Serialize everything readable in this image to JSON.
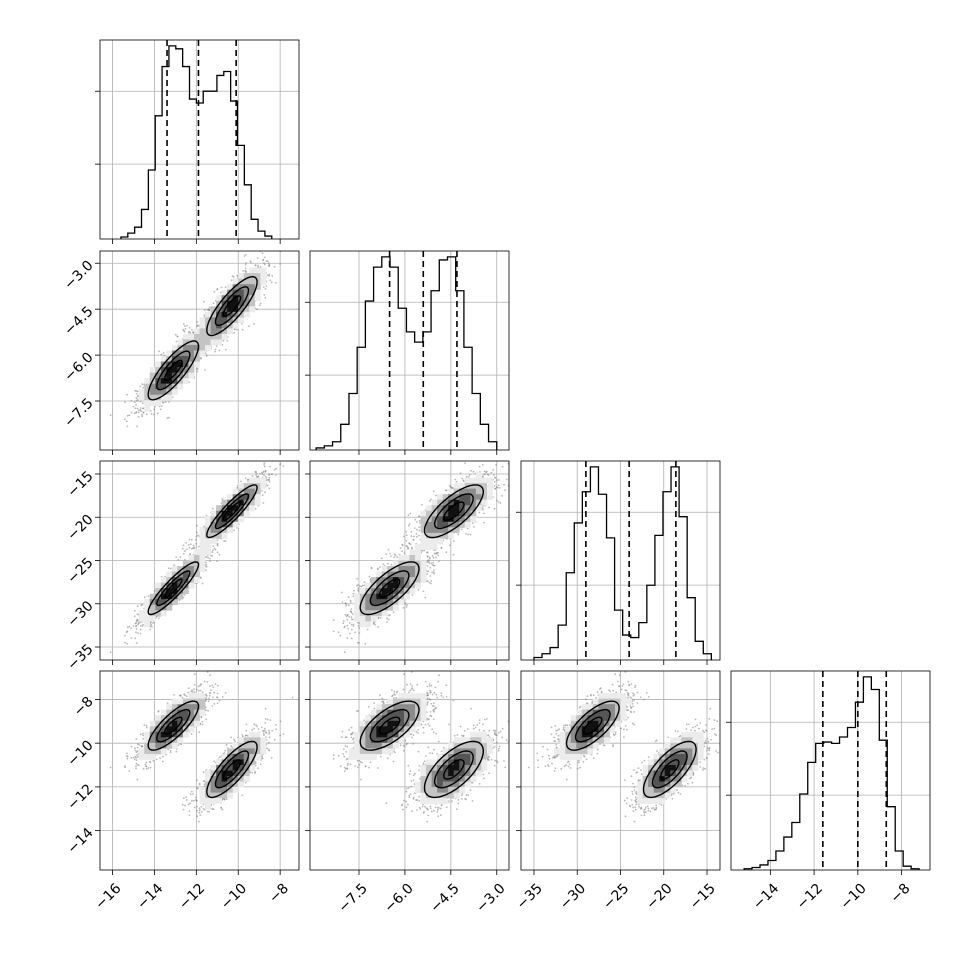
{
  "chart_data": {
    "type": "corner",
    "grid": true,
    "variables": [
      {
        "range": [
          -16.6,
          -7.1
        ],
        "ticks": [
          -16,
          -14,
          -12,
          -10,
          -8
        ],
        "tick_labels": [
          "−16",
          "−14",
          "−12",
          "−10",
          "−8"
        ],
        "quantiles": [
          -13.4,
          -11.9,
          -10.1
        ],
        "hist_edges": [
          -15.6,
          -8.4
        ],
        "hist_counts": [
          0.2,
          0.6,
          1.2,
          3.0,
          7.0,
          12.5,
          17.5,
          19.6,
          19.3,
          17.5,
          14.2,
          13.8,
          15.0,
          15.0,
          16.6,
          17.0,
          14.0,
          9.5,
          5.5,
          2.0,
          0.8,
          0.3
        ]
      },
      {
        "range": [
          -9.1,
          -2.6
        ],
        "ticks": [
          -7.5,
          -6.0,
          -4.5,
          -3.0
        ],
        "tick_labels": [
          "−7.5",
          "−6.0",
          "−4.5",
          "−3.0"
        ],
        "quantiles": [
          -6.5,
          -5.4,
          -4.3
        ],
        "hist_edges": [
          -8.9,
          -3.0
        ],
        "hist_counts": [
          0.2,
          0.4,
          0.8,
          2.5,
          5.5,
          10.0,
          14.5,
          17.8,
          18.8,
          17.8,
          13.8,
          11.5,
          10.5,
          11.5,
          15.5,
          18.5,
          18.8,
          15.5,
          10.0,
          5.5,
          2.5,
          0.8
        ]
      },
      {
        "range": [
          -36.5,
          -13.5
        ],
        "ticks": [
          -35,
          -30,
          -25,
          -20,
          -15
        ],
        "tick_labels": [
          "−35",
          "−30",
          "−25",
          "−20",
          "−15"
        ],
        "quantiles": [
          -29.0,
          -24.0,
          -18.6
        ],
        "hist_edges": [
          -35.0,
          -14.5
        ],
        "hist_counts": [
          0.2,
          0.5,
          1.0,
          2.8,
          7.0,
          11.0,
          13.5,
          15.5,
          13.3,
          9.8,
          4.0,
          2.0,
          1.8,
          3.0,
          6.0,
          10.0,
          13.5,
          15.5,
          11.5,
          5.0,
          1.5,
          0.5
        ]
      },
      {
        "range": [
          -15.8,
          -6.7
        ],
        "ticks": [
          -14,
          -12,
          -10,
          -8
        ],
        "tick_labels": [
          "−14",
          "−12",
          "−10",
          "−8"
        ],
        "quantiles": [
          -11.6,
          -10.0,
          -8.7
        ],
        "hist_edges": [
          -15.2,
          -7.2
        ],
        "hist_counts": [
          0.2,
          0.4,
          0.8,
          1.5,
          3.0,
          5.2,
          7.5,
          12.0,
          17.0,
          20.0,
          20.2,
          20.0,
          21.0,
          22.5,
          26.5,
          30.5,
          28.5,
          20.5,
          10.0,
          3.0,
          0.6,
          0.2
        ]
      }
    ],
    "modes": [
      {
        "mean": [
          -13.1,
          -6.5,
          -28.2,
          -9.2
        ],
        "sd": [
          0.75,
          0.6,
          1.9,
          0.7
        ],
        "corr_to_first": [
          1.0,
          0.82,
          0.9,
          0.8
        ]
      },
      {
        "mean": [
          -10.3,
          -4.4,
          -19.3,
          -11.2
        ],
        "sd": [
          0.75,
          0.6,
          1.9,
          0.8
        ],
        "corr_to_first": [
          1.0,
          0.82,
          0.9,
          0.8
        ]
      }
    ]
  }
}
